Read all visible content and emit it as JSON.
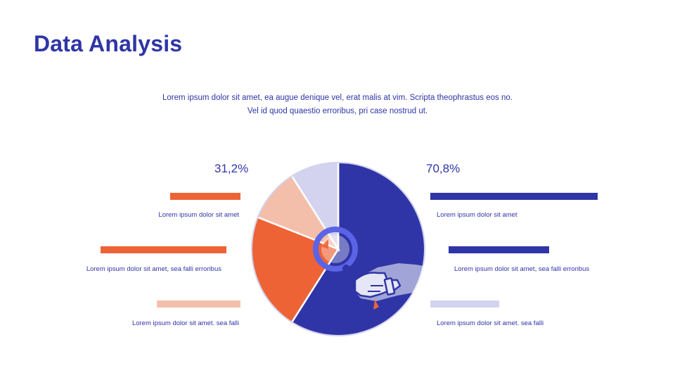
{
  "title": "Data Analysis",
  "intro": "Lorem ipsum dolor sit amet, ea augue denique vel, erat malis at vim. Scripta theophrastus eos no. Vel id quod quaestio erroribus, pri case nostrud ut.",
  "left": {
    "percent": "31,2%",
    "items": [
      {
        "label": "Lorem ipsum dolor sit amet",
        "color": "#ee6336",
        "value": 0.42
      },
      {
        "label": "Lorem ipsum dolor sit amet, sea falli erroribus",
        "color": "#ee6336",
        "value": 0.75
      },
      {
        "label": "Lorem ipsum dolor sit amet. sea falli",
        "color": "#f4bfaa",
        "value": 0.5
      }
    ]
  },
  "right": {
    "percent": "70,8%",
    "items": [
      {
        "label": "Lorem ipsum dolor sit amet",
        "color": "#2f35a6",
        "value": 1.0
      },
      {
        "label": "Lorem ipsum dolor sit amet, sea falli erroribus",
        "color": "#2f35a6",
        "value": 0.6
      },
      {
        "label": "Lorem ipsum dolor sit amet. sea falli",
        "color": "#d3d3ef",
        "value": 0.41
      }
    ]
  },
  "chart_data": {
    "type": "pie",
    "slices": [
      {
        "value": 59.0,
        "color": "#2f35a6"
      },
      {
        "value": 22.0,
        "color": "#ee6336"
      },
      {
        "value": 10.0,
        "color": "#f4bfaa"
      },
      {
        "value": 9.0,
        "color": "#d3d3ef"
      }
    ]
  },
  "icons": [
    "magnifier-icon",
    "hand-icon"
  ],
  "colors": {
    "accent": "#2f35a6",
    "orange": "#ee6336",
    "peach": "#f4bfaa",
    "lavender": "#d3d3ef",
    "magnifier": "#5b63e6"
  }
}
